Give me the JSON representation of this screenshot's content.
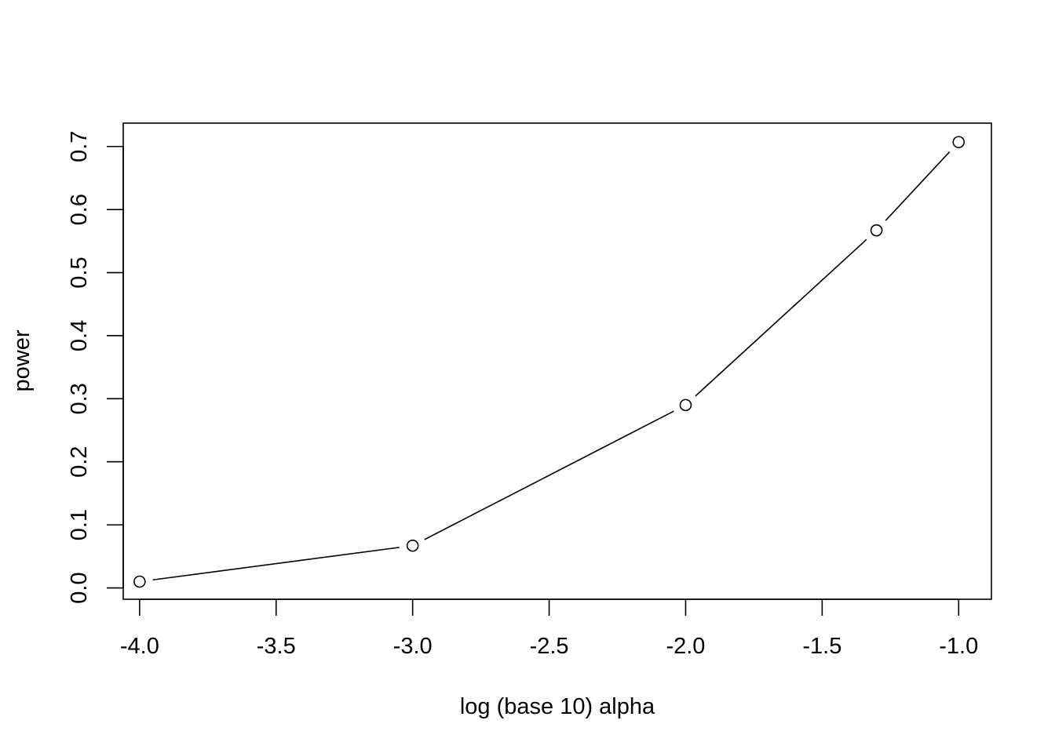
{
  "chart_data": {
    "type": "line",
    "title": "",
    "xlabel": "log (base 10) alpha",
    "ylabel": "power",
    "xlim": [
      -4.06,
      -0.88
    ],
    "ylim": [
      -0.018,
      0.737
    ],
    "xticks": [
      -4.0,
      -3.5,
      -3.0,
      -2.5,
      -2.0,
      -1.5,
      -1.0
    ],
    "xtick_labels": [
      "-4.0",
      "-3.5",
      "-3.0",
      "-2.5",
      "-2.0",
      "-1.5",
      "-1.0"
    ],
    "yticks": [
      0.0,
      0.1,
      0.2,
      0.3,
      0.4,
      0.5,
      0.6,
      0.7
    ],
    "ytick_labels": [
      "0.0",
      "0.1",
      "0.2",
      "0.3",
      "0.4",
      "0.5",
      "0.6",
      "0.7"
    ],
    "grid": false,
    "marker": "open-circle",
    "series": [
      {
        "x": [
          -4.0,
          -3.0,
          -2.0,
          -1.301,
          -1.0
        ],
        "y": [
          0.01,
          0.067,
          0.29,
          0.567,
          0.707
        ]
      }
    ]
  }
}
